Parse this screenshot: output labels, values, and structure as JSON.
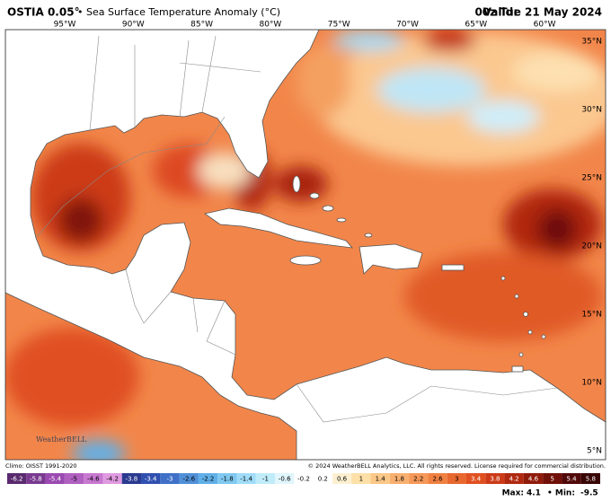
{
  "header": {
    "title": "OSTIA 0.05°",
    "subtitle": "• Sea Surface Temperature Anomaly (°C)",
    "valid_label": "Valid:",
    "valid": "00z Tue 21 May 2024"
  },
  "map": {
    "longitudes": [
      "95°W",
      "90°W",
      "85°W",
      "80°W",
      "75°W",
      "70°W",
      "65°W",
      "60°W"
    ],
    "latitudes": [
      "35°N",
      "30°N",
      "25°N",
      "20°N",
      "15°N",
      "10°N",
      "5°N"
    ],
    "logo": "WeatherBELL"
  },
  "footer": {
    "climo": "Climo: OISST 1991-2020",
    "copyright": "© 2024 WeatherBELL Analytics, LLC. All rights reserved. License required for commercial distribution.",
    "max_label": "Max:",
    "max": 4.1,
    "min_label": "• Min:",
    "min": -9.5
  },
  "colorbar": {
    "ticks": [
      -6.2,
      -5.8,
      -5.4,
      -5,
      -4.6,
      -4.2,
      -3.8,
      -3.4,
      -3,
      -2.6,
      -2.2,
      -1.8,
      -1.4,
      -1,
      -0.6,
      -0.2,
      0.2,
      0.6,
      1,
      1.4,
      1.8,
      2.2,
      2.6,
      3,
      3.4,
      3.8,
      4.2,
      4.6,
      5,
      5.4,
      5.8
    ],
    "colors": [
      "#5a2a6e",
      "#7a3a90",
      "#9a4ab0",
      "#b060c0",
      "#c878d0",
      "#e09ae0",
      "#2a3a90",
      "#3050b0",
      "#4070c8",
      "#5090d8",
      "#60b0e8",
      "#80c8f0",
      "#a0dcf8",
      "#c0ecfa",
      "#e0f6fc",
      "#ffffff",
      "#ffffff",
      "#fdf0d0",
      "#fde0a8",
      "#fbc888",
      "#f8b070",
      "#f59858",
      "#f08040",
      "#e86830",
      "#e05020",
      "#cc3a18",
      "#b02810",
      "#901a0a",
      "#701008",
      "#500808",
      "#380404"
    ]
  }
}
